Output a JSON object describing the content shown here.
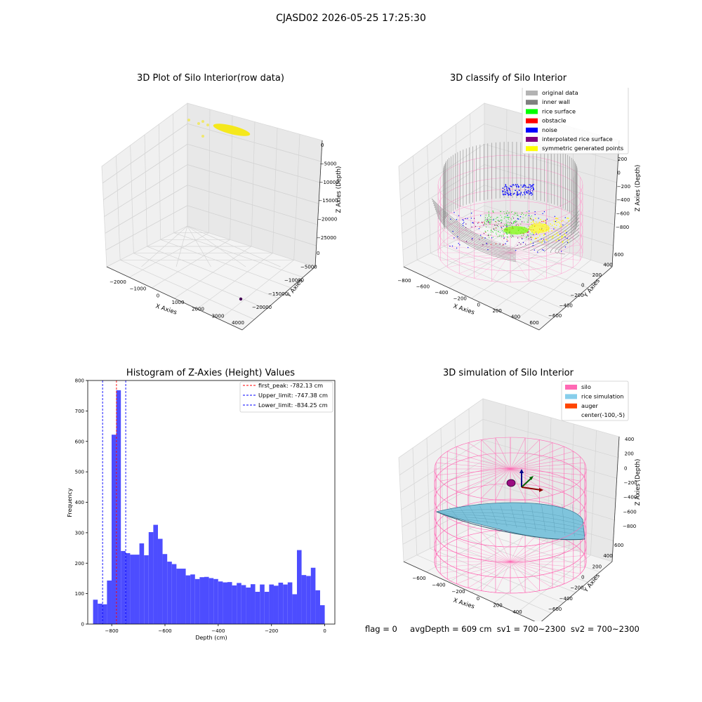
{
  "figure": {
    "suptitle": "CJASD02 2026-05-25 17:25:30",
    "footer": {
      "flag": "flag = 0",
      "avg_depth": "avgDepth = 609 cm",
      "sv1": "sv1 = 700~2300",
      "sv2": "sv2 = 700~2300"
    }
  },
  "chart_data": [
    {
      "type": "scatter",
      "subtype": "3d-scatter",
      "title": "3D Plot of Silo Interior(row data)",
      "xlabel": "X Axies",
      "ylabel": "Y Axies",
      "zlabel": "Z Axies (Depth)",
      "x_ticks": [
        "−2000",
        "−1000",
        "0",
        "1000",
        "2000",
        "3000",
        "4000"
      ],
      "y_ticks": [
        "−20000",
        "−15000",
        "−10000",
        "−5000",
        "0"
      ],
      "z_ticks": [
        "−25000",
        "−20000",
        "−15000",
        "−10000",
        "−5000",
        "0"
      ],
      "series_colors": {
        "main_points": "#f5e81c",
        "outlier": "#440154"
      }
    },
    {
      "type": "scatter",
      "subtype": "3d-scatter",
      "title": "3D classify of Silo Interior",
      "xlabel": "X Axies",
      "ylabel": "Y Axies",
      "zlabel": "Z Axies (Depth)",
      "x_ticks": [
        "−800",
        "−600",
        "−400",
        "−200",
        "0",
        "200",
        "400",
        "600"
      ],
      "y_ticks": [
        "−600",
        "−400",
        "−200",
        "0",
        "200",
        "400",
        "600"
      ],
      "z_ticks": [
        "−800",
        "−600",
        "−400",
        "−200",
        "0",
        "200"
      ],
      "legend": {
        "placement": "upper-right",
        "entries": [
          {
            "label": "original data",
            "color": "#b3b3b3"
          },
          {
            "label": "inner wall",
            "color": "#808080"
          },
          {
            "label": "rice surface",
            "color": "#00ff00"
          },
          {
            "label": "obstacle",
            "color": "#ff0000"
          },
          {
            "label": "noise",
            "color": "#0000ff"
          },
          {
            "label": "interpolated rice surface",
            "color": "#800080"
          },
          {
            "label": "symmetric generated points",
            "color": "#ffff00"
          }
        ]
      }
    },
    {
      "type": "bar",
      "subtype": "histogram",
      "title": "Histogram of Z-Axies (Height) Values",
      "xlabel": "Depth (cm)",
      "ylabel": "Frequency",
      "xlim": [
        -890,
        38
      ],
      "ylim": [
        0,
        800
      ],
      "x_ticks": [
        "−800",
        "−600",
        "−400",
        "−200",
        "0"
      ],
      "y_ticks": [
        "0",
        "100",
        "200",
        "300",
        "400",
        "500",
        "600",
        "700",
        "800"
      ],
      "bar_color": "#4d4dff",
      "bin_start": -870,
      "bin_width": 17.4,
      "values": [
        80,
        67,
        65,
        143,
        622,
        768,
        240,
        233,
        228,
        228,
        265,
        226,
        302,
        326,
        280,
        230,
        205,
        197,
        182,
        182,
        160,
        163,
        148,
        154,
        155,
        151,
        148,
        140,
        137,
        138,
        127,
        135,
        128,
        120,
        131,
        106,
        130,
        106,
        130,
        126,
        136,
        130,
        137,
        98,
        243,
        161,
        158,
        185,
        111,
        62
      ],
      "vlines": [
        {
          "label": "first_peak: -782.13 cm",
          "x": -782.13,
          "color": "#ff0000"
        },
        {
          "label": "Upper_limit: -747.38 cm",
          "x": -747.38,
          "color": "#0000ff"
        },
        {
          "label": "Lower_limit: -834.25 cm",
          "x": -834.25,
          "color": "#0000ff"
        }
      ],
      "legend_placement": "upper-right"
    },
    {
      "type": "other",
      "subtype": "3d-surface",
      "title": "3D simulation of Silo Interior",
      "xlabel": "X Axies",
      "ylabel": "Y Axies",
      "zlabel": "Z Axies (Depth)",
      "x_ticks": [
        "−600",
        "−400",
        "−200",
        "0",
        "200",
        "400"
      ],
      "y_ticks": [
        "−600",
        "−400",
        "−200",
        "0",
        "200",
        "400",
        "600"
      ],
      "z_ticks": [
        "−800",
        "−600",
        "−400",
        "−200",
        "0",
        "200",
        "400"
      ],
      "legend": {
        "placement": "upper-right",
        "entries": [
          {
            "label": "silo",
            "color": "#ff69b4"
          },
          {
            "label": "rice simulation",
            "color": "#87ceeb"
          },
          {
            "label": "auger",
            "color": "#ff4500"
          },
          {
            "label": "center(-100,-5)",
            "color": ""
          }
        ]
      }
    }
  ]
}
